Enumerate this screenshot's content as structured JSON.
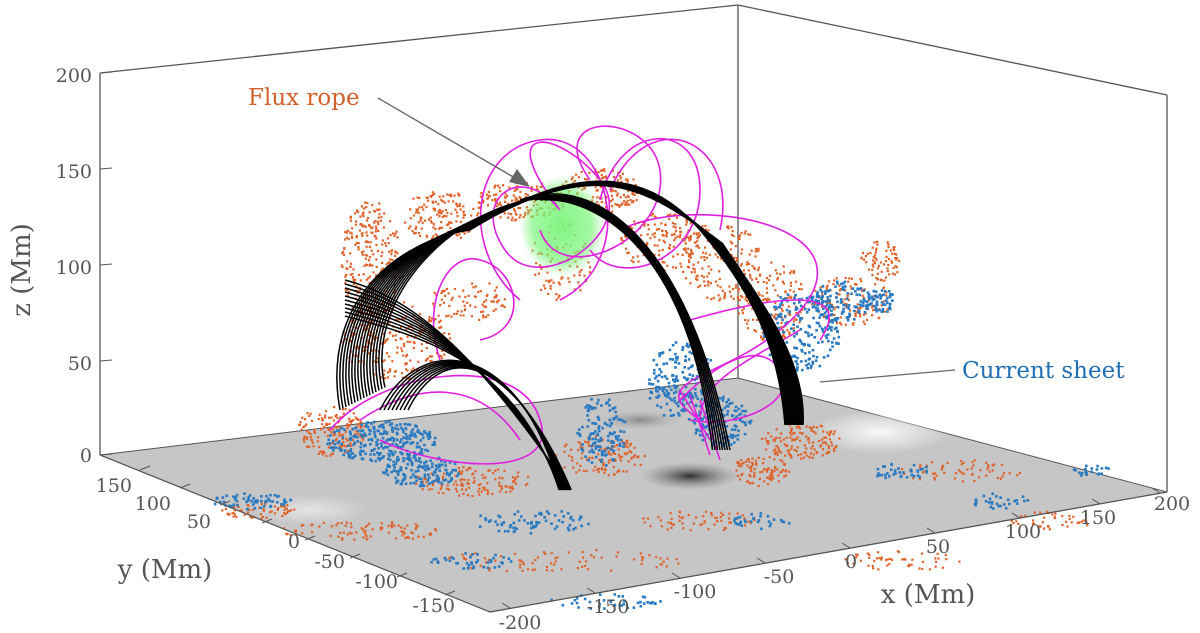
{
  "chart_data": {
    "type": "3d-scatter-fieldlines",
    "axes": {
      "x": {
        "label": "x (Mm)",
        "ticks": [
          "-200",
          "-150",
          "-100",
          "-50",
          "0",
          "50",
          "100",
          "150",
          "200"
        ],
        "range": [
          -200,
          200
        ]
      },
      "y": {
        "label": "y (Mm)",
        "ticks": [
          "-150",
          "-100",
          "-50",
          "0",
          "50",
          "100",
          "150"
        ],
        "range": [
          -150,
          150
        ]
      },
      "z": {
        "label": "z (Mm)",
        "ticks": [
          "0",
          "50",
          "100",
          "150",
          "200"
        ],
        "range": [
          0,
          200
        ]
      }
    },
    "annotations": [
      {
        "text": "Flux rope",
        "color": "#d2602a"
      },
      {
        "text": "Current sheet",
        "color": "#1f6fb4"
      }
    ],
    "series_colors": {
      "flux_rope_points": "#e0632a",
      "current_sheet_points": "#2a7ac2",
      "black_field_lines": "#000000",
      "magenta_field_lines": "#e020e0",
      "green_rope_core": "#7cf57c",
      "floor_magnetogram": "#c8c8c8"
    },
    "grid": false
  }
}
